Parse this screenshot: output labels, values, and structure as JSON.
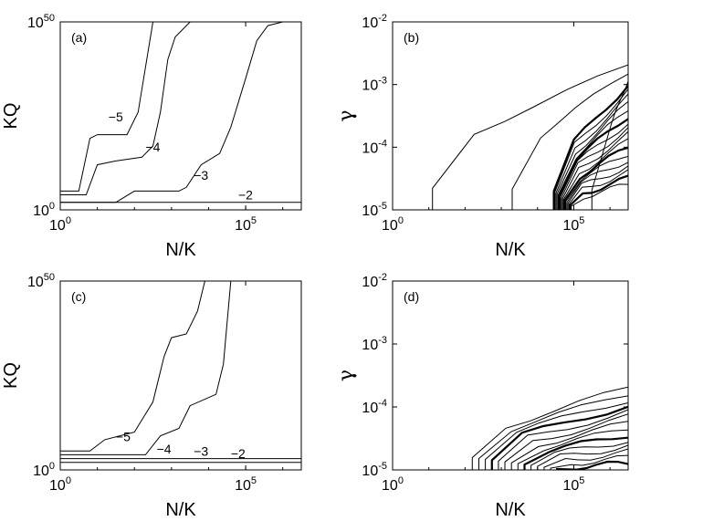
{
  "chart_data": [
    {
      "panel": "(a)",
      "type": "line",
      "xlabel": "N/K",
      "ylabel": "KQ",
      "x_scale": "log",
      "y_scale": "log",
      "x_ticks": [
        {
          "base": "10",
          "exp": "0"
        },
        {
          "base": "10",
          "exp": "5"
        }
      ],
      "y_ticks": [
        {
          "base": "10",
          "exp": "0"
        },
        {
          "base": "10",
          "exp": "50"
        }
      ],
      "xlim_log10": [
        0,
        6.5
      ],
      "ylim_log10": [
        0,
        50
      ],
      "series": [
        {
          "name": "-5",
          "label_at": [
            1.3,
            23.5
          ],
          "points": [
            [
              0,
              5
            ],
            [
              0.5,
              5
            ],
            [
              0.8,
              19
            ],
            [
              1.0,
              20
            ],
            [
              1.8,
              20
            ],
            [
              2.1,
              26
            ],
            [
              2.3,
              38
            ],
            [
              2.5,
              50
            ]
          ]
        },
        {
          "name": "-4",
          "label_at": [
            2.3,
            15.5
          ],
          "points": [
            [
              0,
              4
            ],
            [
              0.7,
              4
            ],
            [
              1.0,
              12
            ],
            [
              1.5,
              13
            ],
            [
              2.2,
              14
            ],
            [
              2.5,
              17
            ],
            [
              2.7,
              26
            ],
            [
              2.9,
              40
            ],
            [
              3.1,
              46
            ],
            [
              3.5,
              50
            ]
          ]
        },
        {
          "name": "-3",
          "label_at": [
            3.6,
            8
          ],
          "points": [
            [
              0,
              2
            ],
            [
              1.5,
              2
            ],
            [
              2.0,
              5
            ],
            [
              3.2,
              5
            ],
            [
              3.4,
              6
            ],
            [
              3.8,
              12
            ],
            [
              4.3,
              15
            ],
            [
              4.6,
              22
            ],
            [
              5.0,
              35
            ],
            [
              5.3,
              45
            ],
            [
              5.6,
              49
            ],
            [
              6.0,
              50
            ]
          ]
        },
        {
          "name": "-2",
          "label_at": [
            4.8,
            2.8
          ],
          "points": [
            [
              0,
              2
            ],
            [
              6.5,
              2
            ]
          ]
        }
      ]
    },
    {
      "panel": "(b)",
      "type": "line",
      "xlabel": "N/K",
      "ylabel": "γ",
      "x_scale": "log",
      "y_scale": "log",
      "x_ticks": [
        {
          "base": "10",
          "exp": "0"
        },
        {
          "base": "10",
          "exp": "5"
        }
      ],
      "y_ticks": [
        {
          "base": "10",
          "exp": "-5"
        },
        {
          "base": "10",
          "exp": "-4"
        },
        {
          "base": "10",
          "exp": "-3"
        },
        {
          "base": "10",
          "exp": "-2"
        }
      ],
      "xlim_log10": [
        0,
        6.5
      ],
      "ylim_log10": [
        -5,
        -2
      ],
      "contour_family": {
        "description": "nested contour lines rising with N/K",
        "levels": 20,
        "right_edge_log10_gamma_range": [
          -4.6,
          -2.7
        ]
      }
    },
    {
      "panel": "(c)",
      "type": "line",
      "xlabel": "N/K",
      "ylabel": "KQ",
      "x_scale": "log",
      "y_scale": "log",
      "x_ticks": [
        {
          "base": "10",
          "exp": "0"
        },
        {
          "base": "10",
          "exp": "5"
        }
      ],
      "y_ticks": [
        {
          "base": "10",
          "exp": "0"
        },
        {
          "base": "10",
          "exp": "50"
        }
      ],
      "xlim_log10": [
        0,
        6.5
      ],
      "ylim_log10": [
        0,
        50
      ],
      "series": [
        {
          "name": "-5",
          "label_at": [
            1.5,
            7.6
          ],
          "points": [
            [
              0,
              5
            ],
            [
              0.8,
              5
            ],
            [
              1.2,
              8
            ],
            [
              2.0,
              10
            ],
            [
              2.5,
              18
            ],
            [
              2.8,
              30
            ],
            [
              3.0,
              35
            ],
            [
              3.4,
              36
            ],
            [
              3.7,
              42
            ],
            [
              3.9,
              50
            ]
          ]
        },
        {
          "name": "-4",
          "label_at": [
            2.6,
            4.4
          ],
          "points": [
            [
              0,
              4
            ],
            [
              2.3,
              4
            ],
            [
              2.7,
              9
            ],
            [
              3.2,
              11
            ],
            [
              3.5,
              17
            ],
            [
              4.2,
              20
            ],
            [
              4.4,
              28
            ],
            [
              4.6,
              50
            ]
          ]
        },
        {
          "name": "-3",
          "label_at": [
            3.6,
            3.7
          ],
          "points": [
            [
              0,
              3
            ],
            [
              6.5,
              3
            ]
          ]
        },
        {
          "name": "-2",
          "label_at": [
            4.6,
            3.1
          ],
          "points": [
            [
              0,
              2
            ],
            [
              6.5,
              2
            ]
          ]
        }
      ]
    },
    {
      "panel": "(d)",
      "type": "line",
      "xlabel": "N/K",
      "ylabel": "γ",
      "x_scale": "log",
      "y_scale": "log",
      "x_ticks": [
        {
          "base": "10",
          "exp": "0"
        },
        {
          "base": "10",
          "exp": "5"
        }
      ],
      "y_ticks": [
        {
          "base": "10",
          "exp": "-5"
        },
        {
          "base": "10",
          "exp": "-4"
        },
        {
          "base": "10",
          "exp": "-3"
        },
        {
          "base": "10",
          "exp": "-2"
        }
      ],
      "xlim_log10": [
        0,
        6.5
      ],
      "ylim_log10": [
        -5,
        -2
      ],
      "contour_family": {
        "description": "nested contour lines rising with N/K",
        "levels": 14,
        "right_edge_log10_gamma_range": [
          -4.9,
          -3.7
        ]
      }
    }
  ]
}
